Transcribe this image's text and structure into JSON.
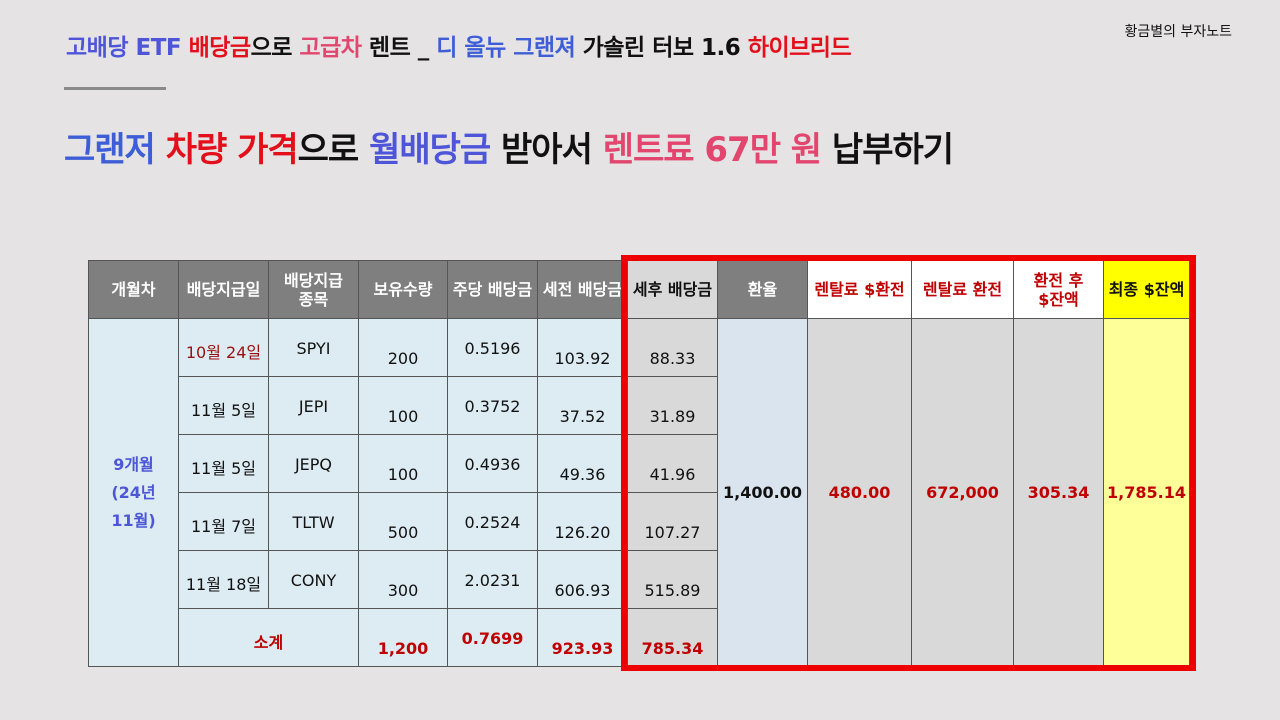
{
  "brand": "황금별의 부자노트",
  "title": {
    "p1": "고배당 ETF ",
    "p2": "배당금",
    "p3": "으로 ",
    "p4": "고급차",
    "p5": " 렌트 _ ",
    "p6": "디 올뉴 그랜져",
    "p7": " 가솔린 터보 1.6 ",
    "p8": "하이브리드"
  },
  "headline": {
    "p1": "그랜저 ",
    "p2": "차량 가격",
    "p3": "으로 ",
    "p4": "월배당금",
    "p5": " 받아서 ",
    "p6": "렌트료 67만 원",
    "p7": " 납부하기"
  },
  "table": {
    "headers": {
      "period": "개월차",
      "date": "배당지급일",
      "ticker_l1": "배당지급",
      "ticker_l2": "종목",
      "qty": "보유수량",
      "dps": "주당 배당금",
      "pretax": "세전 배당금",
      "aftertax": "세후 배당금",
      "fx": "환율",
      "rent_usd": "렌탈료 $환전",
      "rent_krw": "렌탈료 환전",
      "after_l1": "환전 후",
      "after_l2": "$잔액",
      "final": "최종 $잔액"
    },
    "period_l1": "9개월",
    "period_l2": "(24년",
    "period_l3": "11월)",
    "rows": [
      {
        "date": "10월 24일",
        "ticker": "SPYI",
        "qty": "200",
        "dps": "0.5196",
        "pretax": "103.92",
        "aftertax": "88.33"
      },
      {
        "date": "11월 5일",
        "ticker": "JEPI",
        "qty": "100",
        "dps": "0.3752",
        "pretax": "37.52",
        "aftertax": "31.89"
      },
      {
        "date": "11월 5일",
        "ticker": "JEPQ",
        "qty": "100",
        "dps": "0.4936",
        "pretax": "49.36",
        "aftertax": "41.96"
      },
      {
        "date": "11월 7일",
        "ticker": "TLTW",
        "qty": "500",
        "dps": "0.2524",
        "pretax": "126.20",
        "aftertax": "107.27"
      },
      {
        "date": "11월 18일",
        "ticker": "CONY",
        "qty": "300",
        "dps": "2.0231",
        "pretax": "606.93",
        "aftertax": "515.89"
      }
    ],
    "subtotal": {
      "label": "소계",
      "qty": "1,200",
      "dps": "0.7699",
      "pretax": "923.93",
      "aftertax": "785.34"
    },
    "fx": "1,400.00",
    "rent_usd": "480.00",
    "rent_krw": "672,000",
    "after_balance": "305.34",
    "final_balance": "1,785.14"
  }
}
